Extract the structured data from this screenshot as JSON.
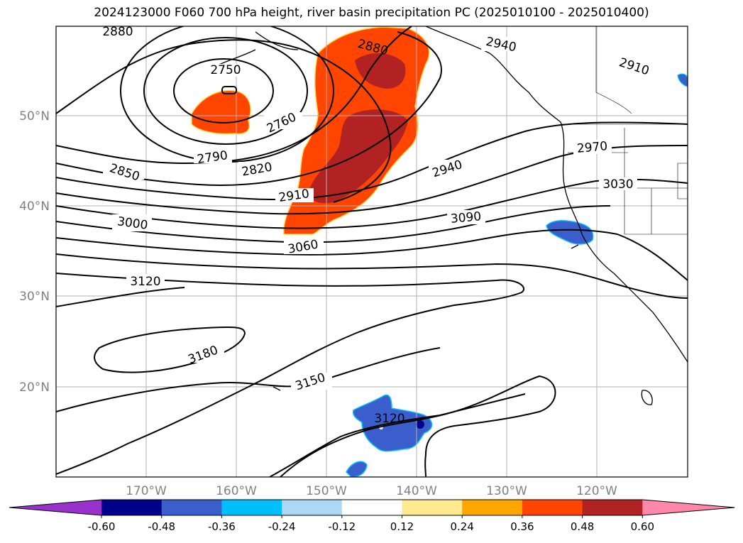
{
  "title": "2024123000 F060 700 hPa height, river basin precipitation PC (2025010100 - 2025010400)",
  "lon_ticks": [
    "170°W",
    "160°W",
    "150°W",
    "140°W",
    "130°W",
    "120°W"
  ],
  "lat_ticks": [
    "50°N",
    "40°N",
    "30°N",
    "20°N"
  ],
  "contour_labels": [
    "2880",
    "2940",
    "2910",
    "2750",
    "2880",
    "2760",
    "2790",
    "2820",
    "2850",
    "2910",
    "2940",
    "2970",
    "3030",
    "3000",
    "3090",
    "3060",
    "3120",
    "3180",
    "3150",
    "3120"
  ],
  "colorbar": {
    "ticks": [
      "-0.60",
      "-0.48",
      "-0.36",
      "-0.24",
      "-0.12",
      "0.12",
      "0.24",
      "0.36",
      "0.48",
      "0.60"
    ],
    "colors": [
      "#9932cc",
      "#00008b",
      "#3a5fcd",
      "#00bfff",
      "#add8f5",
      "#ffffff",
      "#ffe98f",
      "#ffa500",
      "#ff4500",
      "#b22222",
      "#ff88aa"
    ]
  }
}
